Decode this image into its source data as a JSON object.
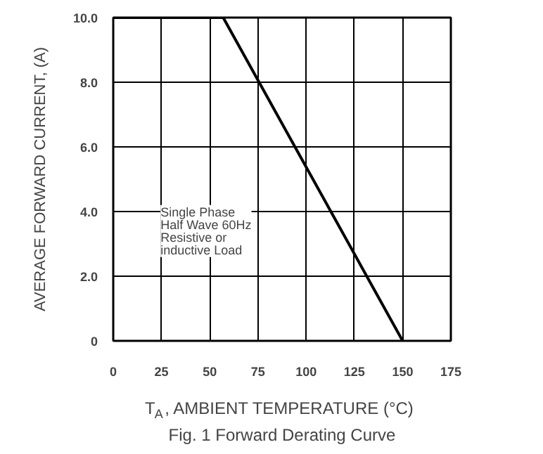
{
  "chart_data": {
    "type": "line",
    "title": "Fig. 1 Forward Derating Curve",
    "xlabel": "T$_{A}$, AMBIENT TEMPERATURE (°C)",
    "ylabel": "AVERAGE FORWARD CURRENT, (A)",
    "x": [
      0,
      57,
      150
    ],
    "series": [
      {
        "color": "#000000",
        "values": [
          10,
          10,
          0
        ]
      }
    ],
    "xlim": [
      0,
      175
    ],
    "xticks": [
      0,
      25,
      50,
      75,
      100,
      125,
      150,
      175
    ],
    "ylim": [
      0,
      10
    ],
    "yticks": [
      0,
      {
        "value": 2,
        "label": "2.0"
      },
      {
        "value": 4,
        "label": "4.0"
      },
      {
        "value": 6,
        "label": "6.0"
      },
      {
        "value": 8,
        "label": "8.0"
      },
      {
        "value": 10,
        "label": "10.0"
      }
    ],
    "grid": true,
    "marker": "none",
    "line_style": "solid",
    "annotations": [
      "Single Phase\nHalf Wave 60Hz\nResistive or\ninductive Load"
    ]
  }
}
